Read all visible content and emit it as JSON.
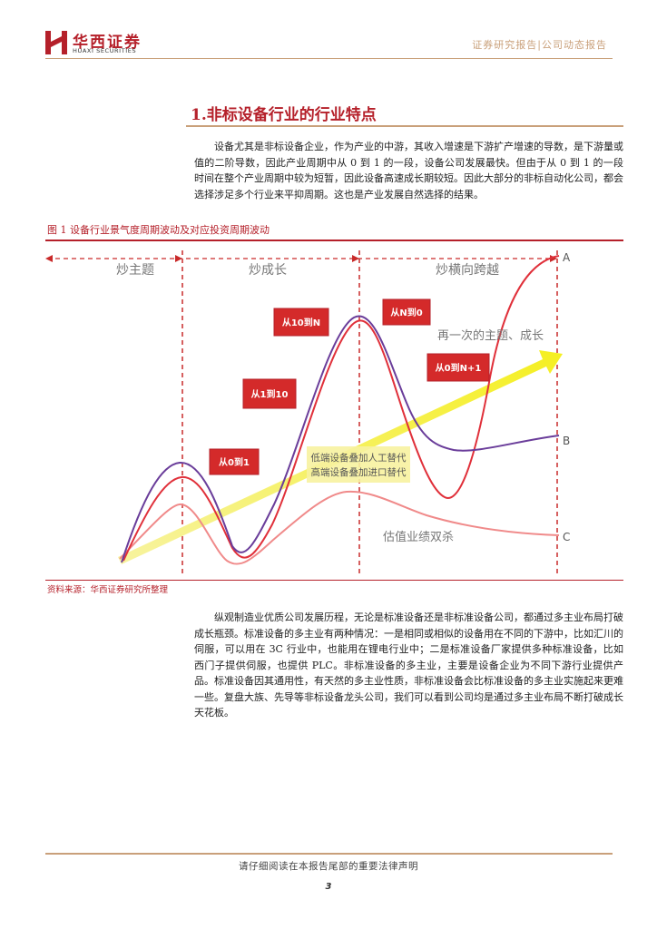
{
  "header": {
    "logo_cn": "华西证券",
    "logo_en": "HUAXI SECURITIES",
    "report_type": "证券研究报告|公司动态报告"
  },
  "section": {
    "title": "1.非标设备行业的行业特点",
    "paragraph1": "设备尤其是非标设备企业，作为产业的中游，其收入增速是下游扩产增速的导数，是下游量或值的二阶导数，因此产业周期中从 0 到 1 的一段，设备公司发展最快。但由于从 0 到 1 的一段时间在整个产业周期中较为短暂，因此设备高速成长期较短。因此大部分的非标自动化公司，都会选择涉足多个行业来平抑周期。这也是产业发展自然选择的结果。"
  },
  "figure": {
    "caption": "图 1   设备行业景气度周期波动及对应投资周期波动",
    "source": "资料来源：华西证券研究所整理",
    "phases": [
      "炒主题",
      "炒成长",
      "炒横向跨越"
    ],
    "stage_boxes": [
      "从0到1",
      "从1到10",
      "从10到N",
      "从N到0",
      "从0到N+1"
    ],
    "end_labels": [
      "A",
      "B",
      "C"
    ],
    "annotations": {
      "trend_note": "再一次的主题、成长",
      "substitution_line1": "低端设备叠加人工替代",
      "substitution_line2": "高端设备叠加进口替代",
      "valuation_note": "估值业绩双杀"
    },
    "colors": {
      "accent_red": "#b5202a",
      "stage_box": "#d42a2a",
      "arrow": "#f5ef2a",
      "curve_purple": "#6a3d9a",
      "curve_red": "#e0303a",
      "curve_pink": "#f08a8a"
    }
  },
  "body": {
    "paragraph2": "纵观制造业优质公司发展历程，无论是标准设备还是非标准设备公司，都通过多主业布局打破成长瓶颈。标准设备的多主业有两种情况：一是相同或相似的设备用在不同的下游中，比如汇川的伺服，可以用在 3C 行业中，也能用在锂电行业中；二是标准设备厂家提供多种标准设备，比如西门子提供伺服，也提供 PLC。非标准设备的多主业，主要是设备企业为不同下游行业提供产品。标准设备因其通用性，有天然的多主业性质，非标准设备会比标准设备的多主业实施起来更难一些。复盘大族、先导等非标设备龙头公司，我们可以看到公司均是通过多主业布局不断打破成长天花板。"
  },
  "footer": {
    "disclaimer": "请仔细阅读在本报告尾部的重要法律声明",
    "page_number": "3"
  }
}
